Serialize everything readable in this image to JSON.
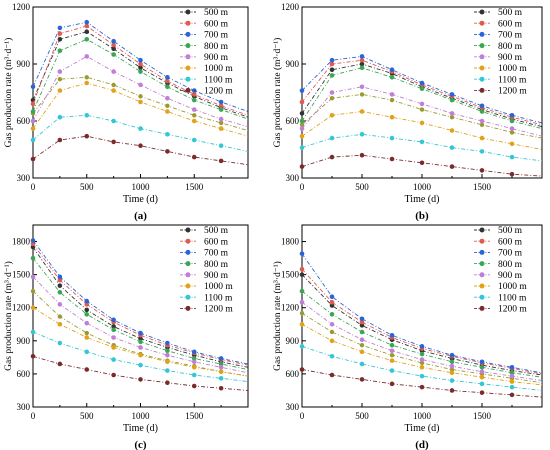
{
  "chart_data": [
    {
      "panel_label": "(a)",
      "type": "line",
      "xlabel": "Time (d)",
      "ylabel": "Gas production rate (m³·d⁻¹)",
      "xlim": [
        0,
        2000
      ],
      "ylim": [
        300,
        1200
      ],
      "xticks": [
        0,
        500,
        1000,
        1500
      ],
      "yticks": [
        300,
        600,
        900,
        1200
      ],
      "legend": "top-right",
      "x": [
        0,
        250,
        500,
        750,
        1000,
        1250,
        1500,
        1750,
        2000
      ],
      "series": [
        {
          "name": "500 m",
          "values": [
            710,
            1030,
            1070,
            980,
            880,
            800,
            730,
            670,
            620
          ]
        },
        {
          "name": "600 m",
          "values": [
            690,
            1060,
            1100,
            1000,
            900,
            810,
            740,
            680,
            630
          ]
        },
        {
          "name": "700 m",
          "values": [
            780,
            1090,
            1120,
            1020,
            920,
            830,
            760,
            700,
            650
          ]
        },
        {
          "name": "800 m",
          "values": [
            650,
            970,
            1030,
            950,
            860,
            780,
            710,
            660,
            610
          ]
        },
        {
          "name": "900 m",
          "values": [
            600,
            860,
            940,
            860,
            790,
            720,
            660,
            610,
            570
          ]
        },
        {
          "name": "1000 m",
          "values": [
            560,
            760,
            800,
            760,
            700,
            650,
            600,
            560,
            520
          ]
        },
        {
          "name": "1100 m",
          "values": [
            500,
            620,
            630,
            600,
            560,
            530,
            500,
            470,
            440
          ]
        },
        {
          "name": "1200 m",
          "values": [
            400,
            500,
            520,
            490,
            470,
            440,
            410,
            390,
            370
          ]
        }
      ],
      "extra_series": [
        {
          "name": "",
          "values": [
            640,
            820,
            830,
            790,
            730,
            680,
            630,
            590,
            550
          ]
        }
      ]
    },
    {
      "panel_label": "(b)",
      "type": "line",
      "xlabel": "Time (d)",
      "ylabel": "Gas production rate (m³·d⁻¹)",
      "xlim": [
        0,
        2000
      ],
      "ylim": [
        300,
        1200
      ],
      "xticks": [
        0,
        500,
        1000,
        1500
      ],
      "yticks": [
        300,
        600,
        900,
        1200
      ],
      "legend": "top-right",
      "x": [
        0,
        250,
        500,
        750,
        1000,
        1250,
        1500,
        1750,
        2000
      ],
      "series": [
        {
          "name": "500 m",
          "values": [
            640,
            870,
            900,
            850,
            780,
            720,
            660,
            610,
            570
          ]
        },
        {
          "name": "600 m",
          "values": [
            700,
            900,
            920,
            860,
            790,
            730,
            670,
            620,
            580
          ]
        },
        {
          "name": "700 m",
          "values": [
            760,
            920,
            940,
            870,
            800,
            740,
            680,
            630,
            590
          ]
        },
        {
          "name": "800 m",
          "values": [
            600,
            840,
            880,
            830,
            770,
            710,
            650,
            600,
            560
          ]
        },
        {
          "name": "900 m",
          "values": [
            560,
            750,
            780,
            740,
            690,
            640,
            600,
            560,
            520
          ]
        },
        {
          "name": "1000 m",
          "values": [
            520,
            630,
            650,
            620,
            590,
            550,
            510,
            480,
            450
          ]
        },
        {
          "name": "1100 m",
          "values": [
            460,
            510,
            530,
            510,
            490,
            460,
            440,
            410,
            390
          ]
        },
        {
          "name": "1200 m",
          "values": [
            360,
            410,
            420,
            400,
            380,
            360,
            340,
            320,
            310
          ]
        }
      ],
      "extra_series": [
        {
          "name": "",
          "values": [
            580,
            720,
            740,
            710,
            660,
            620,
            580,
            540,
            510
          ]
        }
      ]
    },
    {
      "panel_label": "(c)",
      "type": "line",
      "xlabel": "Time (d)",
      "ylabel": "Gas production rate (m³·d⁻¹)",
      "xlim": [
        0,
        2000
      ],
      "ylim": [
        300,
        1950
      ],
      "xticks": [
        0,
        500,
        1000,
        1500
      ],
      "yticks": [
        300,
        600,
        900,
        1200,
        1500,
        1800
      ],
      "legend": "top-right",
      "x": [
        0,
        250,
        500,
        750,
        1000,
        1250,
        1500,
        1750,
        2000
      ],
      "series": [
        {
          "name": "500 m",
          "values": [
            1750,
            1400,
            1180,
            1030,
            920,
            840,
            770,
            710,
            660
          ]
        },
        {
          "name": "600 m",
          "values": [
            1780,
            1450,
            1230,
            1070,
            950,
            860,
            790,
            730,
            680
          ]
        },
        {
          "name": "700 m",
          "values": [
            1810,
            1480,
            1260,
            1090,
            970,
            880,
            800,
            740,
            690
          ]
        },
        {
          "name": "800 m",
          "values": [
            1650,
            1340,
            1140,
            1000,
            890,
            810,
            740,
            690,
            640
          ]
        },
        {
          "name": "900 m",
          "values": [
            1480,
            1230,
            1060,
            930,
            840,
            770,
            710,
            660,
            610
          ]
        },
        {
          "name": "1000 m",
          "values": [
            1200,
            1050,
            930,
            840,
            770,
            710,
            660,
            620,
            580
          ]
        },
        {
          "name": "1100 m",
          "values": [
            980,
            880,
            800,
            730,
            680,
            630,
            590,
            560,
            530
          ]
        },
        {
          "name": "1200 m",
          "values": [
            760,
            690,
            640,
            590,
            550,
            520,
            490,
            470,
            450
          ]
        }
      ],
      "extra_series": [
        {
          "name": "",
          "values": [
            1350,
            1120,
            970,
            860,
            780,
            720,
            670,
            620,
            580
          ]
        }
      ]
    },
    {
      "panel_label": "(d)",
      "type": "line",
      "xlabel": "Time (d)",
      "ylabel": "Gas production rate (m³·d⁻¹)",
      "xlim": [
        0,
        2000
      ],
      "ylim": [
        300,
        1950
      ],
      "xticks": [
        0,
        500,
        1000,
        1500
      ],
      "yticks": [
        300,
        600,
        900,
        1200,
        1500,
        1800
      ],
      "legend": "top-right",
      "x": [
        0,
        250,
        500,
        750,
        1000,
        1250,
        1500,
        1750,
        2000
      ],
      "series": [
        {
          "name": "500 m",
          "values": [
            1500,
            1220,
            1040,
            910,
            810,
            740,
            680,
            630,
            590
          ]
        },
        {
          "name": "600 m",
          "values": [
            1550,
            1250,
            1070,
            930,
            830,
            760,
            700,
            650,
            600
          ]
        },
        {
          "name": "700 m",
          "values": [
            1690,
            1300,
            1100,
            950,
            850,
            770,
            710,
            660,
            610
          ]
        },
        {
          "name": "800 m",
          "values": [
            1350,
            1140,
            980,
            860,
            780,
            710,
            660,
            610,
            570
          ]
        },
        {
          "name": "900 m",
          "values": [
            1250,
            1050,
            910,
            810,
            730,
            670,
            620,
            580,
            540
          ]
        },
        {
          "name": "1000 m",
          "values": [
            1050,
            900,
            800,
            720,
            660,
            610,
            570,
            530,
            500
          ]
        },
        {
          "name": "1100 m",
          "values": [
            850,
            760,
            690,
            630,
            580,
            540,
            510,
            480,
            450
          ]
        },
        {
          "name": "1200 m",
          "values": [
            640,
            590,
            550,
            510,
            480,
            450,
            430,
            410,
            390
          ]
        }
      ],
      "extra_series": [
        {
          "name": "",
          "values": [
            1150,
            980,
            860,
            770,
            700,
            640,
            600,
            560,
            520
          ]
        }
      ]
    }
  ],
  "colors": {
    "500 m": "#333333",
    "600 m": "#e05a4f",
    "700 m": "#2b63d9",
    "800 m": "#3aa655",
    "900 m": "#c17ed6",
    "1000 m": "#e0a21b",
    "1100 m": "#35c6d6",
    "1200 m": "#7a2b2b",
    "extra": "#9a9a30"
  }
}
